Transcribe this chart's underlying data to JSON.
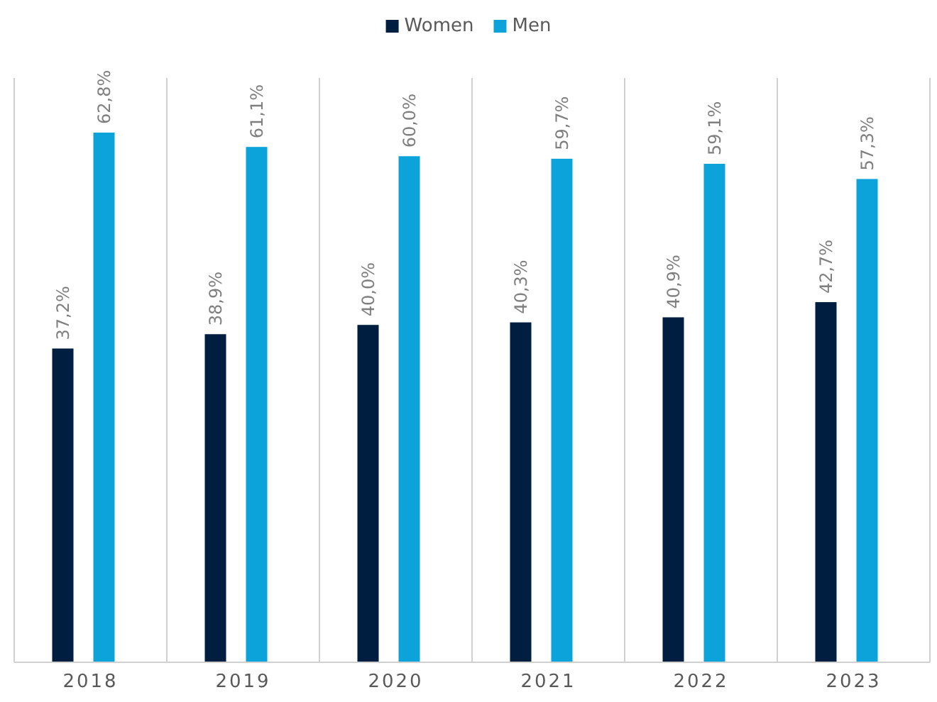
{
  "chart_data": {
    "type": "bar",
    "categories": [
      "2018",
      "2019",
      "2020",
      "2021",
      "2022",
      "2023"
    ],
    "series": [
      {
        "name": "Women",
        "color": "#001e3f",
        "values": [
          37.2,
          38.9,
          40.0,
          40.3,
          40.9,
          42.7
        ],
        "value_labels": [
          "37,2%",
          "38,9%",
          "40,0%",
          "40,3%",
          "40,9%",
          "42,7%"
        ]
      },
      {
        "name": "Men",
        "color": "#0ba3da",
        "values": [
          62.8,
          61.1,
          60.0,
          59.7,
          59.1,
          57.3
        ],
        "value_labels": [
          "62,8%",
          "61,1%",
          "60,0%",
          "59,7%",
          "59,1%",
          "57,3%"
        ]
      }
    ],
    "grid": "x",
    "legend": "top"
  }
}
